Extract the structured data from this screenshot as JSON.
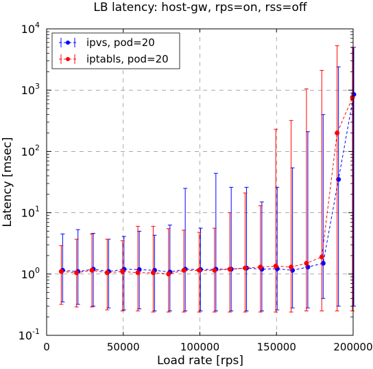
{
  "chart_data": {
    "type": "line",
    "title": "LB latency: host-gw,  rps=on, rss=off",
    "xlabel": "Load rate [rps]",
    "ylabel": "Latency [msec]",
    "xlim": [
      0,
      200000
    ],
    "ylim": [
      0.1,
      10000
    ],
    "yscale": "log",
    "grid": true,
    "legend_position": "top-left",
    "x_ticks": [
      {
        "value": 0,
        "label": "0"
      },
      {
        "value": 50000,
        "label": "50000"
      },
      {
        "value": 100000,
        "label": "100000"
      },
      {
        "value": 150000,
        "label": "150000"
      },
      {
        "value": 200000,
        "label": "200000"
      }
    ],
    "y_ticks": [
      {
        "value": 0.1,
        "base": "10",
        "exp": "-1"
      },
      {
        "value": 1,
        "base": "10",
        "exp": "0"
      },
      {
        "value": 10,
        "base": "10",
        "exp": "1"
      },
      {
        "value": 100,
        "base": "10",
        "exp": "2"
      },
      {
        "value": 1000,
        "base": "10",
        "exp": "3"
      },
      {
        "value": 10000,
        "base": "10",
        "exp": "4"
      }
    ],
    "series": [
      {
        "name": "ipvs, pod=20",
        "color": "#0000ff",
        "x": [
          10000,
          20000,
          30000,
          40000,
          50000,
          60000,
          70000,
          80000,
          90000,
          100000,
          110000,
          120000,
          130000,
          140000,
          150000,
          160000,
          170000,
          180000,
          190000,
          200000
        ],
        "y": [
          1.15,
          1.1,
          1.2,
          1.1,
          1.2,
          1.18,
          1.15,
          1.08,
          1.2,
          1.18,
          1.2,
          1.2,
          1.25,
          1.2,
          1.22,
          1.15,
          1.3,
          1.5,
          35,
          850
        ],
        "y_low": [
          0.35,
          0.32,
          0.3,
          0.28,
          0.26,
          0.27,
          0.25,
          0.25,
          0.25,
          0.25,
          0.25,
          0.25,
          0.25,
          0.25,
          0.26,
          0.28,
          0.28,
          0.4,
          0.3,
          0.3
        ],
        "y_high": [
          4.5,
          5.3,
          4.6,
          3.7,
          4.1,
          5.0,
          4.3,
          6.3,
          25,
          5.6,
          44,
          26,
          26,
          15,
          26,
          54,
          210,
          400,
          2400,
          5000
        ]
      },
      {
        "name": "iptabls, pod=20",
        "color": "#ff0000",
        "x": [
          10000,
          20000,
          30000,
          40000,
          50000,
          60000,
          70000,
          80000,
          90000,
          100000,
          110000,
          120000,
          130000,
          140000,
          150000,
          160000,
          170000,
          180000,
          190000,
          200000
        ],
        "y": [
          1.1,
          1.05,
          1.15,
          1.05,
          1.1,
          1.05,
          1.05,
          1.0,
          1.15,
          1.15,
          1.15,
          1.2,
          1.25,
          1.3,
          1.35,
          1.3,
          1.5,
          1.9,
          200,
          750
        ],
        "y_low": [
          0.32,
          0.29,
          0.29,
          0.26,
          0.25,
          0.25,
          0.24,
          0.24,
          0.24,
          0.24,
          0.24,
          0.24,
          0.24,
          0.24,
          0.24,
          0.24,
          0.25,
          0.25,
          0.25,
          0.25
        ],
        "y_high": [
          2.9,
          3.7,
          4.5,
          3.7,
          3.5,
          6.0,
          6.0,
          5.5,
          5.2,
          4.8,
          5.6,
          10,
          21,
          13,
          230,
          320,
          1050,
          2100,
          5300,
          5000
        ]
      }
    ]
  }
}
